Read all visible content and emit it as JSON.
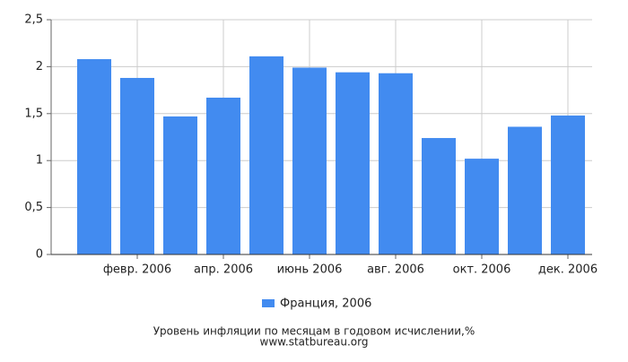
{
  "chart_data": {
    "type": "bar",
    "title": "Уровень инфляции по месяцам в годовом исчислении,%",
    "source": "www.statbureau.org",
    "categories": [
      null,
      "февр. 2006",
      null,
      "апр. 2006",
      null,
      "июнь 2006",
      null,
      "авг. 2006",
      null,
      "окт. 2006",
      null,
      "дек. 2006"
    ],
    "series": [
      {
        "name": "Франция, 2006",
        "color": "#428bf0",
        "values": [
          2.08,
          1.88,
          1.47,
          1.67,
          2.11,
          1.99,
          1.94,
          1.93,
          1.24,
          1.02,
          1.36,
          1.48
        ]
      }
    ],
    "ylim": [
      0,
      2.5
    ],
    "yticks": [
      0,
      {
        "value": 0.5,
        "label": "0,5"
      },
      1,
      {
        "value": 1.5,
        "label": "1,5"
      },
      2,
      {
        "value": 2.5,
        "label": "2,5"
      }
    ],
    "grid": true
  }
}
